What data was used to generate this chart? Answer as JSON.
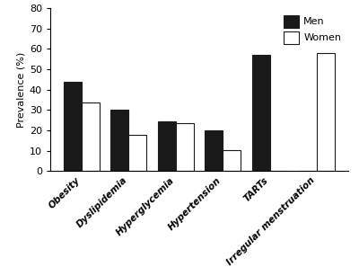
{
  "categories": [
    "Obesity",
    "Dyslipidemia",
    "Hyperglycemia",
    "Hypertension",
    "TARTs",
    "Irregular menstruation"
  ],
  "men_values": [
    44,
    30,
    24.5,
    20,
    57,
    0
  ],
  "women_values": [
    33.5,
    18,
    23.5,
    10.5,
    0,
    58
  ],
  "men_color": "#1a1a1a",
  "women_color": "#ffffff",
  "bar_edge_color": "#1a1a1a",
  "ylabel": "Prevalence (%)",
  "ylim": [
    0,
    80
  ],
  "yticks": [
    0,
    10,
    20,
    30,
    40,
    50,
    60,
    70,
    80
  ],
  "legend_men": "Men",
  "legend_women": "Women",
  "bar_width": 0.38,
  "figsize": [
    4.0,
    3.07
  ],
  "dpi": 100
}
